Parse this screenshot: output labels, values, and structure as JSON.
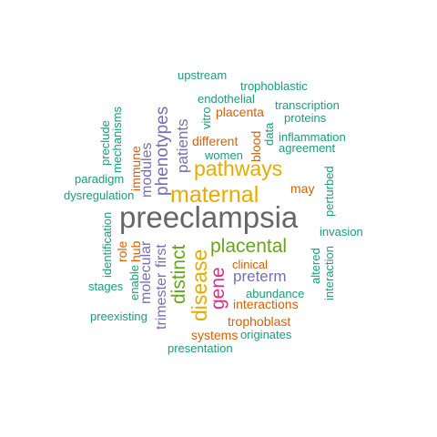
{
  "colors": {
    "teal": "#1b9e77",
    "orange": "#d95f02",
    "purple": "#7570b3",
    "pink": "#e7298a",
    "green": "#66a61e",
    "gold": "#e6ab02",
    "brown": "#a6761d",
    "gray": "#666666"
  },
  "words": [
    {
      "id": "preeclampsia",
      "text": "preeclampsia",
      "color": "gray"
    },
    {
      "id": "maternal",
      "text": "maternal",
      "color": "gold"
    },
    {
      "id": "pathways",
      "text": "pathways",
      "color": "gold"
    },
    {
      "id": "placental",
      "text": "placental",
      "color": "green"
    },
    {
      "id": "disease",
      "text": "disease",
      "color": "gold"
    },
    {
      "id": "distinct",
      "text": "distinct",
      "color": "green"
    },
    {
      "id": "gene",
      "text": "gene",
      "color": "pink"
    },
    {
      "id": "preterm",
      "text": "preterm",
      "color": "purple"
    },
    {
      "id": "phenotypes",
      "text": "phenotypes",
      "color": "purple"
    },
    {
      "id": "patients",
      "text": "patients",
      "color": "purple"
    },
    {
      "id": "modules",
      "text": "modules",
      "color": "purple"
    },
    {
      "id": "molecular",
      "text": "molecular",
      "color": "purple"
    },
    {
      "id": "trimester",
      "text": "trimester",
      "color": "purple"
    },
    {
      "id": "first",
      "text": "first",
      "color": "purple"
    },
    {
      "id": "immune",
      "text": "immune",
      "color": "orange"
    },
    {
      "id": "hub",
      "text": "hub",
      "color": "orange"
    },
    {
      "id": "role",
      "text": "role",
      "color": "orange"
    },
    {
      "id": "placenta",
      "text": "placenta",
      "color": "orange"
    },
    {
      "id": "different",
      "text": "different",
      "color": "orange"
    },
    {
      "id": "blood",
      "text": "blood",
      "color": "orange"
    },
    {
      "id": "may",
      "text": "may",
      "color": "orange"
    },
    {
      "id": "clinical",
      "text": "clinical",
      "color": "orange"
    },
    {
      "id": "interactions",
      "text": "interactions",
      "color": "orange"
    },
    {
      "id": "trophoblast",
      "text": "trophoblast",
      "color": "orange"
    },
    {
      "id": "systems",
      "text": "systems",
      "color": "orange"
    },
    {
      "id": "upstream",
      "text": "upstream",
      "color": "teal"
    },
    {
      "id": "trophoblastic",
      "text": "trophoblastic",
      "color": "teal"
    },
    {
      "id": "endothelial",
      "text": "endothelial",
      "color": "teal"
    },
    {
      "id": "transcription",
      "text": "transcription",
      "color": "teal"
    },
    {
      "id": "proteins",
      "text": "proteins",
      "color": "teal"
    },
    {
      "id": "vitro",
      "text": "vitro",
      "color": "teal"
    },
    {
      "id": "data",
      "text": "data",
      "color": "teal"
    },
    {
      "id": "inflammation",
      "text": "inflammation",
      "color": "teal"
    },
    {
      "id": "agreement",
      "text": "agreement",
      "color": "teal"
    },
    {
      "id": "women",
      "text": "women",
      "color": "teal"
    },
    {
      "id": "preclude",
      "text": "preclude",
      "color": "teal"
    },
    {
      "id": "mechanisms",
      "text": "mechanisms",
      "color": "teal"
    },
    {
      "id": "paradigm",
      "text": "paradigm",
      "color": "teal"
    },
    {
      "id": "dysregulation",
      "text": "dysregulation",
      "color": "teal"
    },
    {
      "id": "perturbed",
      "text": "perturbed",
      "color": "teal"
    },
    {
      "id": "invasion",
      "text": "invasion",
      "color": "teal"
    },
    {
      "id": "identification",
      "text": "identification",
      "color": "teal"
    },
    {
      "id": "enable",
      "text": "enable",
      "color": "teal"
    },
    {
      "id": "stages",
      "text": "stages",
      "color": "teal"
    },
    {
      "id": "altered",
      "text": "altered",
      "color": "teal"
    },
    {
      "id": "interaction",
      "text": "interaction",
      "color": "teal"
    },
    {
      "id": "abundance",
      "text": "abundance",
      "color": "teal"
    },
    {
      "id": "preexisting",
      "text": "preexisting",
      "color": "teal"
    },
    {
      "id": "originates",
      "text": "originates",
      "color": "teal"
    },
    {
      "id": "presentation",
      "text": "presentation",
      "color": "teal"
    }
  ]
}
